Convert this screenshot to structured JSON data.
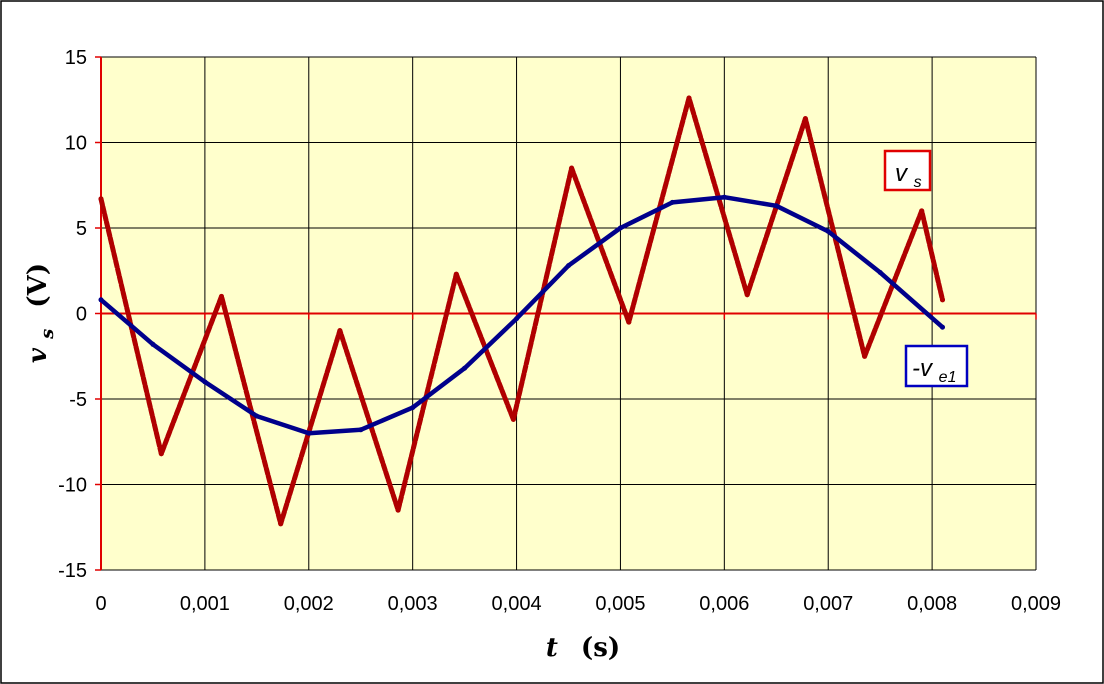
{
  "chart_data": {
    "type": "line",
    "xlabel_var": "t",
    "xlabel_unit": "(s)",
    "ylabel_var": "v",
    "ylabel_sub": "s",
    "ylabel_unit": "(V)",
    "xlim": [
      0,
      0.009
    ],
    "ylim": [
      -15,
      15
    ],
    "x_ticks": [
      "0",
      "0,001",
      "0,002",
      "0,003",
      "0,004",
      "0,005",
      "0,006",
      "0,007",
      "0,008",
      "0,009"
    ],
    "y_ticks": [
      "15",
      "10",
      "5",
      "0",
      "-5",
      "-10",
      "-15"
    ],
    "grid": true,
    "plot_background": "#ffffcc",
    "series": [
      {
        "name_main": "v",
        "name_sub": "s",
        "color": "#b00000",
        "x": [
          0.0,
          0.00058,
          0.00116,
          0.00173,
          0.0023,
          0.00286,
          0.00342,
          0.00397,
          0.00453,
          0.00508,
          0.00566,
          0.00622,
          0.00678,
          0.00735,
          0.0079,
          0.0081
        ],
        "y": [
          6.7,
          -8.2,
          1.0,
          -12.3,
          -1.0,
          -11.5,
          2.3,
          -6.2,
          8.5,
          -0.5,
          12.6,
          1.1,
          11.4,
          -2.5,
          6.0,
          0.8
        ]
      },
      {
        "name_main": "-v",
        "name_sub": "e1",
        "color": "#00008b",
        "x": [
          0.0,
          0.0005,
          0.001,
          0.0015,
          0.002,
          0.0025,
          0.003,
          0.0035,
          0.004,
          0.0045,
          0.005,
          0.0055,
          0.006,
          0.0065,
          0.007,
          0.0075,
          0.0081
        ],
        "y": [
          0.8,
          -1.8,
          -4.0,
          -6.0,
          -7.0,
          -6.8,
          -5.5,
          -3.2,
          -0.3,
          2.8,
          5.0,
          6.5,
          6.8,
          6.3,
          4.8,
          2.4,
          -0.8
        ]
      }
    ]
  }
}
